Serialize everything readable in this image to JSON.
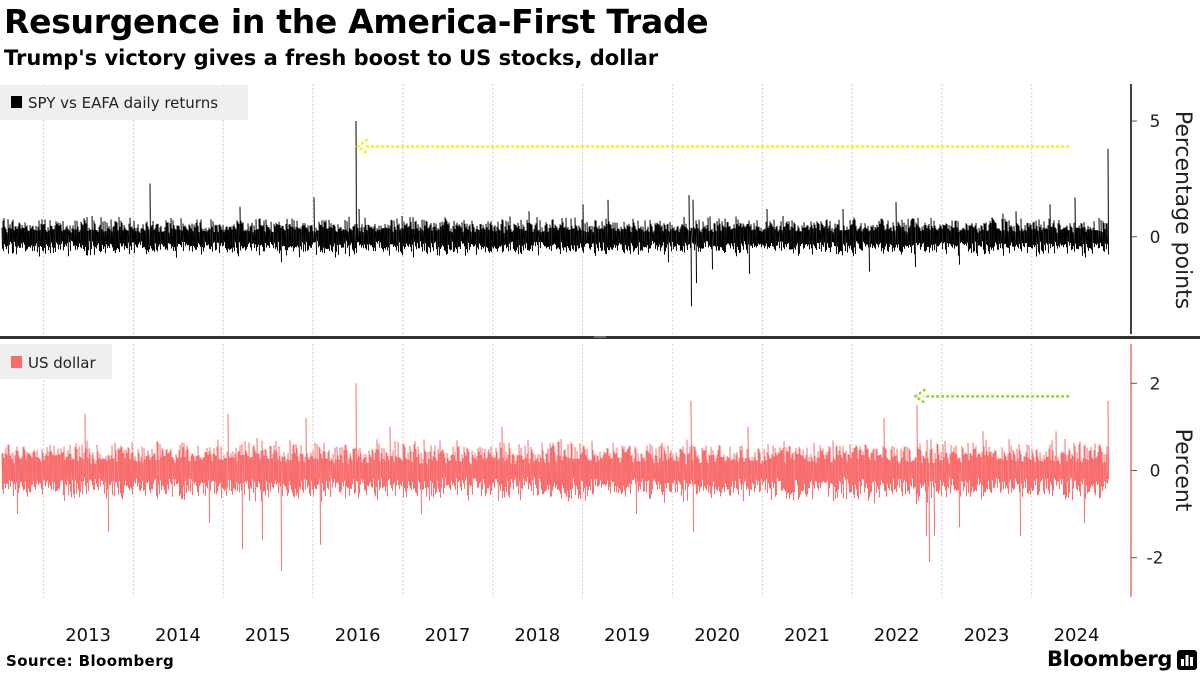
{
  "header": {
    "title": "Resurgence in the America-First Trade",
    "subtitle": "Trump's victory gives a fresh boost to US stocks, dollar"
  },
  "footer": {
    "source": "Source: Bloomberg",
    "brand": "Bloomberg"
  },
  "colors": {
    "top_series": "#000000",
    "bottom_series": "#f86c6c",
    "top_arrow": "#f2f21a",
    "bottom_arrow": "#9bd33b",
    "grid": "#cfcfcf",
    "legend_bg": "#efefef"
  },
  "chart_data": [
    {
      "type": "line",
      "series": [
        {
          "name": "SPY vs EAFA daily returns",
          "color": "#000000",
          "x_start": "2012-07-16",
          "x_end": "2024-11-06",
          "y_min": -0.8,
          "y_max": 0.8,
          "spikes": [
            {
              "x": "2013-07-15",
              "y": 0.9
            },
            {
              "x": "2014-03-10",
              "y": 2.3
            },
            {
              "x": "2014-06-25",
              "y": -0.9
            },
            {
              "x": "2015-03-10",
              "y": 1.3
            },
            {
              "x": "2015-08-24",
              "y": -1.1
            },
            {
              "x": "2016-01-07",
              "y": 1.7
            },
            {
              "x": "2016-06-24",
              "y": 5.0
            },
            {
              "x": "2016-07-05",
              "y": 1.2
            },
            {
              "x": "2017-05-18",
              "y": -0.8
            },
            {
              "x": "2018-05-29",
              "y": 1.1
            },
            {
              "x": "2019-01-03",
              "y": 1.4
            },
            {
              "x": "2019-04-15",
              "y": 1.6
            },
            {
              "x": "2019-12-15",
              "y": -1.1
            },
            {
              "x": "2020-03-09",
              "y": 1.8
            },
            {
              "x": "2020-03-16",
              "y": -3.0
            },
            {
              "x": "2020-03-24",
              "y": 1.6
            },
            {
              "x": "2020-04-06",
              "y": -2.0
            },
            {
              "x": "2020-06-11",
              "y": -1.4
            },
            {
              "x": "2020-11-09",
              "y": -1.6
            },
            {
              "x": "2021-01-20",
              "y": 1.2
            },
            {
              "x": "2021-11-26",
              "y": 1.2
            },
            {
              "x": "2022-03-09",
              "y": -1.5
            },
            {
              "x": "2022-06-27",
              "y": 1.5
            },
            {
              "x": "2022-09-13",
              "y": -1.3
            },
            {
              "x": "2023-03-13",
              "y": -1.2
            },
            {
              "x": "2023-09-06",
              "y": 1.0
            },
            {
              "x": "2023-10-30",
              "y": 1.1
            },
            {
              "x": "2024-03-15",
              "y": 1.4
            },
            {
              "x": "2024-06-24",
              "y": 1.7
            },
            {
              "x": "2024-08-05",
              "y": -0.9
            },
            {
              "x": "2024-11-06",
              "y": 3.8
            }
          ]
        }
      ],
      "ylabel": "Percentage points",
      "yticks": [
        0,
        5
      ],
      "ylim": [
        -4.2,
        6.6
      ],
      "grid": true,
      "legend_position": "top-left",
      "annotation": {
        "type": "arrow",
        "from": "2024-06-01",
        "to": "2016-07-01",
        "y": 3.9,
        "color": "#f2f21a"
      }
    },
    {
      "type": "line",
      "series": [
        {
          "name": "US dollar",
          "color": "#f86c6c",
          "x_start": "2012-07-16",
          "x_end": "2024-11-06",
          "y_min": -0.5,
          "y_max": 0.5,
          "spikes": [
            {
              "x": "2012-09-13",
              "y": -1.0
            },
            {
              "x": "2013-06-20",
              "y": 1.3
            },
            {
              "x": "2013-09-18",
              "y": -1.4
            },
            {
              "x": "2014-11-03",
              "y": -1.2
            },
            {
              "x": "2015-01-22",
              "y": 1.3
            },
            {
              "x": "2015-03-18",
              "y": -1.8
            },
            {
              "x": "2015-06-09",
              "y": -1.6
            },
            {
              "x": "2015-08-24",
              "y": -2.3
            },
            {
              "x": "2015-12-03",
              "y": 1.2
            },
            {
              "x": "2016-01-29",
              "y": -1.7
            },
            {
              "x": "2016-06-24",
              "y": 2.0
            },
            {
              "x": "2016-11-09",
              "y": 1.0
            },
            {
              "x": "2017-03-15",
              "y": -1.0
            },
            {
              "x": "2018-02-06",
              "y": 1.0
            },
            {
              "x": "2019-08-05",
              "y": -1.0
            },
            {
              "x": "2020-03-18",
              "y": 1.6
            },
            {
              "x": "2020-03-23",
              "y": -1.4
            },
            {
              "x": "2020-11-04",
              "y": 1.0
            },
            {
              "x": "2022-05-12",
              "y": 1.2
            },
            {
              "x": "2022-09-23",
              "y": 1.5
            },
            {
              "x": "2022-10-28",
              "y": -1.5
            },
            {
              "x": "2022-11-10",
              "y": -2.1
            },
            {
              "x": "2022-12-01",
              "y": -1.5
            },
            {
              "x": "2023-03-10",
              "y": -1.3
            },
            {
              "x": "2023-06-15",
              "y": 0.9
            },
            {
              "x": "2023-11-14",
              "y": -1.5
            },
            {
              "x": "2024-04-10",
              "y": 0.9
            },
            {
              "x": "2024-08-02",
              "y": -1.2
            },
            {
              "x": "2024-11-06",
              "y": 1.6
            }
          ]
        }
      ],
      "ylabel": "Percent",
      "yticks": [
        -2,
        0,
        2
      ],
      "ylim": [
        -2.9,
        2.9
      ],
      "grid": true,
      "legend_position": "top-left",
      "annotation": {
        "type": "arrow",
        "from": "2024-06-01",
        "to": "2022-09-15",
        "y": 1.7,
        "color": "#9bd33b"
      }
    }
  ],
  "x_axis": {
    "tick_labels": [
      "2013",
      "2014",
      "2015",
      "2016",
      "2017",
      "2018",
      "2019",
      "2020",
      "2021",
      "2022",
      "2023",
      "2024"
    ]
  }
}
